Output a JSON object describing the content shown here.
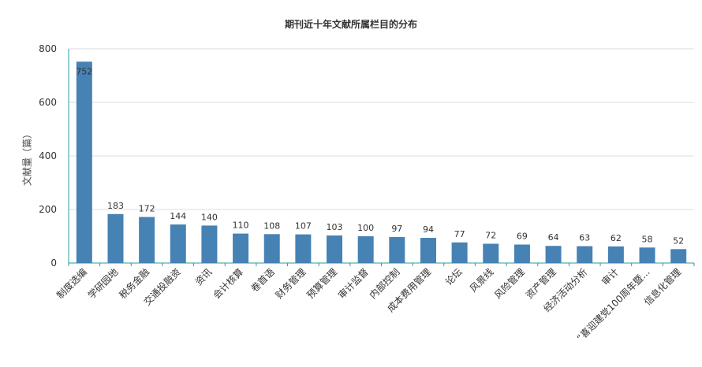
{
  "chart_data": {
    "type": "bar",
    "title": "期刊近十年文献所属栏目的分布",
    "xlabel": "",
    "ylabel": "文献量（篇）",
    "ylim": [
      0,
      800
    ],
    "yticks": [
      0,
      200,
      400,
      600,
      800
    ],
    "grid": true,
    "bar_color": "#4682b4",
    "axis_color": "#2a9d9d",
    "categories": [
      "制度选编",
      "学研园地",
      "税务金融",
      "交通投融资",
      "资讯",
      "会计核算",
      "卷首语",
      "财务管理",
      "预算管理",
      "审计监督",
      "内部控制",
      "成本费用管理",
      "论坛",
      "风景线",
      "风险管理",
      "资产管理",
      "经济活动分析",
      "审计",
      "“喜迎建党100周年暨...",
      "信息化管理"
    ],
    "values": [
      752,
      183,
      172,
      144,
      140,
      110,
      108,
      107,
      103,
      100,
      97,
      94,
      77,
      72,
      69,
      64,
      63,
      62,
      58,
      52
    ]
  }
}
